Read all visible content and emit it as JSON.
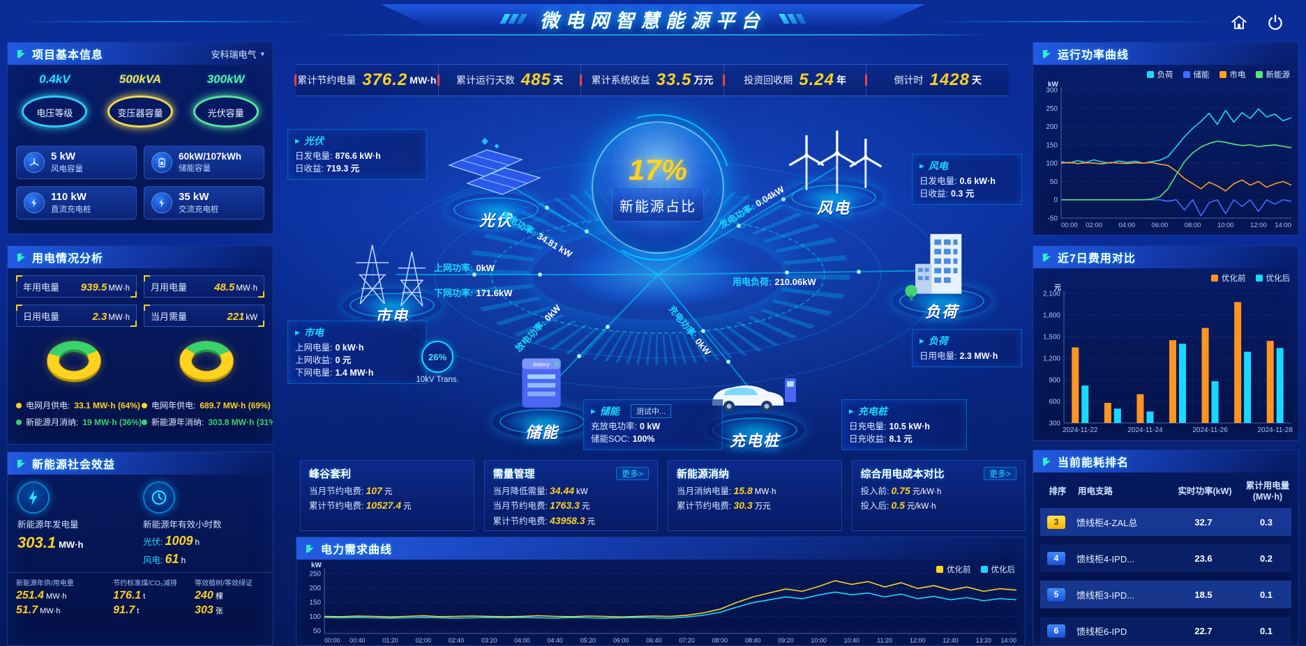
{
  "header": {
    "title": "微电网智慧能源平台"
  },
  "kpi_bar": {
    "items": [
      {
        "label": "累计节约电量",
        "value": "376.2",
        "unit": "MW·h"
      },
      {
        "label": "累计运行天数",
        "value": "485",
        "unit": "天"
      },
      {
        "label": "累计系统收益",
        "value": "33.5",
        "unit": "万元"
      },
      {
        "label": "投资回收期",
        "value": "5.24",
        "unit": "年"
      },
      {
        "label": "倒计时",
        "value": "1428",
        "unit": "天"
      }
    ]
  },
  "project": {
    "title": "项目基本信息",
    "company": "安科瑞电气",
    "gauges": [
      {
        "value": "0.4kV",
        "label": "电压等级",
        "color": "#35d6ff"
      },
      {
        "value": "500kVA",
        "label": "变压器容量",
        "color": "#ffe34d"
      },
      {
        "value": "300kW",
        "label": "光伏容量",
        "color": "#5df0a6"
      }
    ],
    "capacities": [
      {
        "value": "5 kW",
        "label": "风电容量"
      },
      {
        "value": "60kW/107kWh",
        "label": "储能容量"
      },
      {
        "value": "110 kW",
        "label": "直流充电桩"
      },
      {
        "value": "35 kW",
        "label": "交流充电桩"
      }
    ]
  },
  "usage": {
    "title": "用电情况分析",
    "stats": [
      {
        "label": "年用电量",
        "value": "939.5",
        "unit": "MW·h"
      },
      {
        "label": "月用电量",
        "value": "48.5",
        "unit": "MW·h"
      },
      {
        "label": "日用电量",
        "value": "2.3",
        "unit": "MW·h"
      },
      {
        "label": "当月需量",
        "value": "221",
        "unit": "kW"
      }
    ],
    "legend": [
      {
        "label": "电网月供电:",
        "value": "33.1 MW·h (64%)",
        "color": "#ffd21f"
      },
      {
        "label": "新能源月消纳:",
        "value": "19 MW·h (36%)",
        "color": "#3ad26b"
      },
      {
        "label": "电网年供电:",
        "value": "689.7 MW·h (69%)",
        "color": "#ffd21f"
      },
      {
        "label": "新能源年消纳:",
        "value": "303.8 MW·h (31%)",
        "color": "#3ad26b"
      }
    ]
  },
  "social": {
    "title": "新能源社会效益",
    "generation": {
      "label": "新能源年发电量",
      "value": "303.1",
      "unit": "MW·h"
    },
    "hours": {
      "label": "新能源年有效小时数",
      "pv_label": "光伏:",
      "pv_value": "1009",
      "pv_unit": "h",
      "wind_label": "风电:",
      "wind_value": "61",
      "wind_unit": "h"
    },
    "footer": [
      {
        "label": "新能源年供/用电量",
        "v1": "251.4",
        "u1": "MW·h",
        "v2": "51.7",
        "u2": "MW·h"
      },
      {
        "label": "节约标准煤/CO₂减排",
        "v1": "176.1",
        "u1": "t",
        "v2": "91.7",
        "u2": "t"
      },
      {
        "label": "等效植树/等效绿证",
        "v1": "240",
        "u1": "棵",
        "v2": "303",
        "u2": "张"
      }
    ]
  },
  "viz": {
    "hub": {
      "percent": "17%",
      "caption": "新能源占比"
    },
    "transformer": {
      "percent": "26%",
      "label": "10kV Trans."
    },
    "nodes": {
      "pv": {
        "name": "光伏"
      },
      "wind": {
        "name": "风电"
      },
      "grid": {
        "name": "市电"
      },
      "storage": {
        "name": "储能"
      },
      "load": {
        "name": "负荷"
      },
      "charger": {
        "name": "充电桩"
      }
    },
    "cards": {
      "pv": {
        "title": "光伏",
        "lines": [
          {
            "k": "日发电量:",
            "v": "876.6 kW·h"
          },
          {
            "k": "日收益:",
            "v": "719.3 元"
          }
        ]
      },
      "wind": {
        "title": "风电",
        "lines": [
          {
            "k": "日发电量:",
            "v": "0.6 kW·h"
          },
          {
            "k": "日收益:",
            "v": "0.3 元"
          }
        ]
      },
      "grid": {
        "title": "市电",
        "lines": [
          {
            "k": "上网电量:",
            "v": "0 kW·h"
          },
          {
            "k": "上网收益:",
            "v": "0 元"
          },
          {
            "k": "下网电量:",
            "v": "1.4 MW·h"
          }
        ]
      },
      "storage": {
        "title": "储能",
        "badge": "测试中...",
        "lines": [
          {
            "k": "充放电功率:",
            "v": "0 kW"
          },
          {
            "k": "储能SOC:",
            "v": "100%"
          }
        ]
      },
      "load": {
        "title": "负荷",
        "lines": [
          {
            "k": "日用电量:",
            "v": "2.3 MW·h"
          }
        ]
      },
      "charger": {
        "title": "充电桩",
        "lines": [
          {
            "k": "日充电量:",
            "v": "10.5 kW·h"
          },
          {
            "k": "日充收益:",
            "v": "8.1 元"
          }
        ]
      }
    },
    "flows": {
      "pv_gen": {
        "label": "发电功率:",
        "value": "34.81 kW"
      },
      "grid_up": {
        "label": "上网功率:",
        "value": "0kW"
      },
      "grid_down": {
        "label": "下网功率:",
        "value": "171.6kW"
      },
      "wind_gen": {
        "label": "发电功率:",
        "value": "0.04kW"
      },
      "load_power": {
        "label": "用电负荷:",
        "value": "210.06kW"
      },
      "charge": {
        "label": "充电功率:",
        "value": "0kW"
      },
      "discharge": {
        "label": "放电功率:",
        "value": "0kW"
      }
    }
  },
  "benefit_cards": [
    {
      "title": "峰谷套利",
      "lines": [
        {
          "k": "当月节约电费:",
          "v": "107",
          "u": "元"
        },
        {
          "k": "累计节约电费:",
          "v": "10527.4",
          "u": "元"
        }
      ]
    },
    {
      "title": "需量管理",
      "more": "更多>",
      "lines": [
        {
          "k": "当月降低需量:",
          "v": "34.44",
          "u": "kW"
        },
        {
          "k": "当月节约电费:",
          "v": "1763.3",
          "u": "元"
        },
        {
          "k": "累计节约电费:",
          "v": "43958.3",
          "u": "元"
        }
      ]
    },
    {
      "title": "新能源消纳",
      "lines": [
        {
          "k": "当月消纳电量:",
          "v": "15.8",
          "u": "MW·h"
        },
        {
          "k": "累计节约电费:",
          "v": "30.3",
          "u": "万元"
        }
      ]
    },
    {
      "title": "综合用电成本对比",
      "more": "更多>",
      "lines": [
        {
          "k": "投入前:",
          "v": "0.75",
          "u": "元/kW·h"
        },
        {
          "k": "投入后:",
          "v": "0.5",
          "u": "元/kW·h"
        }
      ]
    }
  ],
  "demand_panel": {
    "title": "电力需求曲线"
  },
  "right": {
    "power_curve": {
      "title": "运行功率曲线"
    },
    "cost_compare": {
      "title": "近7日费用对比"
    },
    "ranking": {
      "title": "当前能耗排名",
      "headers": [
        "排序",
        "用电支路",
        "实时功率(kW)",
        "累计用电量(MW·h)"
      ],
      "rows": [
        {
          "rank": "3",
          "name": "馈线柜4-ZAL总",
          "power": "32.7",
          "energy": "0.3"
        },
        {
          "rank": "4",
          "name": "馈线柜4-IPD...",
          "power": "23.6",
          "energy": "0.2"
        },
        {
          "rank": "5",
          "name": "馈线柜3-IPD...",
          "power": "18.5",
          "energy": "0.1"
        },
        {
          "rank": "6",
          "name": "馈线柜6-IPD",
          "power": "22.7",
          "energy": "0.1"
        }
      ]
    }
  },
  "chart_data": [
    {
      "id": "run-power",
      "type": "line",
      "title": "运行功率曲线",
      "ylabel": "kW",
      "ylim": [
        -50,
        300
      ],
      "yticks": [
        -50,
        0,
        50,
        100,
        150,
        200,
        250,
        300
      ],
      "xticks": [
        "00:00",
        "02:00",
        "04:00",
        "06:00",
        "08:00",
        "10:00",
        "12:00",
        "14:00"
      ],
      "ml": 36,
      "grid": true,
      "legend_position": "top-right",
      "series": [
        {
          "name": "负荷",
          "color": "#18dcff",
          "values": [
            104,
            100,
            107,
            102,
            109,
            103,
            100,
            106,
            102,
            105,
            100,
            104,
            108,
            118,
            145,
            172,
            195,
            214,
            236,
            206,
            244,
            212,
            238,
            222,
            248,
            226,
            234,
            216,
            224
          ]
        },
        {
          "name": "储能",
          "color": "#3f6dff",
          "values": [
            0,
            0,
            0,
            0,
            0,
            0,
            0,
            0,
            0,
            0,
            0,
            0,
            0,
            -4,
            0,
            -28,
            0,
            -44,
            -8,
            0,
            -38,
            0,
            -18,
            0,
            -32,
            0,
            -12,
            0,
            -4
          ]
        },
        {
          "name": "市电",
          "color": "#ffa21a",
          "values": [
            100,
            102,
            99,
            101,
            100,
            98,
            102,
            100,
            99,
            101,
            100,
            102,
            97,
            94,
            78,
            58,
            44,
            30,
            48,
            38,
            24,
            44,
            54,
            40,
            50,
            34,
            44,
            50,
            40
          ]
        },
        {
          "name": "新能源",
          "color": "#57e87b",
          "values": [
            0,
            0,
            0,
            0,
            0,
            0,
            0,
            0,
            0,
            0,
            0,
            2,
            8,
            30,
            68,
            104,
            128,
            144,
            154,
            160,
            157,
            152,
            148,
            150,
            145,
            148,
            150,
            146,
            142
          ]
        }
      ]
    },
    {
      "id": "cost-compare",
      "type": "bar",
      "title": "近7日费用对比",
      "ylabel": "元",
      "ylim": [
        300,
        2100
      ],
      "yticks": [
        300,
        600,
        900,
        1200,
        1500,
        1800,
        2100
      ],
      "categories": [
        "2024-11-22",
        "2024-11-23",
        "2024-11-24",
        "2024-11-25",
        "2024-11-26",
        "2024-11-27",
        "2024-11-28"
      ],
      "xticks": [
        "2024-11-22",
        "2024-11-24",
        "2024-11-26",
        "2024-11-28"
      ],
      "xtick_idx": [
        0,
        2,
        4,
        6
      ],
      "ml": 40,
      "legend_position": "top-right",
      "series": [
        {
          "name": "优化前",
          "color": "#ff9420",
          "values": [
            1350,
            580,
            700,
            1450,
            1620,
            1980,
            1440
          ]
        },
        {
          "name": "优化后",
          "color": "#19d8ff",
          "values": [
            820,
            500,
            460,
            1400,
            880,
            1290,
            1340
          ]
        }
      ]
    },
    {
      "id": "demand-curve",
      "type": "line",
      "title": "电力需求曲线",
      "ylabel": "kW",
      "ylim": [
        40,
        260
      ],
      "yticks": [
        50,
        100,
        150,
        200,
        250
      ],
      "xticks": [
        "00:00",
        "00:40",
        "01:20",
        "02:00",
        "02:40",
        "03:20",
        "04:00",
        "04:40",
        "05:20",
        "06:00",
        "06:40",
        "07:20",
        "08:00",
        "08:40",
        "09:20",
        "10:00",
        "10:40",
        "11:20",
        "12:00",
        "12:40",
        "13:20",
        "14:00"
      ],
      "ml": 34,
      "xfont": 9,
      "legend_position": "top-right",
      "series": [
        {
          "name": "优化前",
          "color": "#ffd21f",
          "values": [
            100,
            99,
            101,
            100,
            98,
            100,
            102,
            99,
            100,
            101,
            100,
            99,
            100,
            102,
            100,
            99,
            101,
            100,
            98,
            100,
            101,
            100,
            104,
            112,
            125,
            148,
            168,
            182,
            196,
            188,
            205,
            225,
            212,
            222,
            203,
            218,
            198,
            208,
            192,
            203,
            188,
            197,
            192
          ]
        },
        {
          "name": "优化后",
          "color": "#19d8ff",
          "values": [
            96,
            95,
            96,
            95,
            94,
            95,
            96,
            95,
            94,
            95,
            96,
            95,
            96,
            95,
            94,
            96,
            95,
            94,
            95,
            96,
            95,
            94,
            98,
            104,
            114,
            132,
            148,
            158,
            168,
            162,
            175,
            185,
            176,
            182,
            168,
            178,
            162,
            170,
            158,
            166,
            155,
            162,
            158
          ]
        }
      ]
    },
    {
      "id": "donut-month",
      "type": "pie",
      "values": [
        64,
        36
      ],
      "labels": [
        "电网月供电",
        "新能源月消纳"
      ],
      "amounts": [
        "33.1 MW·h",
        "19 MW·h"
      ],
      "colors": [
        "#ffd21f",
        "#3ad26b"
      ],
      "colors_dark": [
        "#b99500",
        "#1f9646"
      ]
    },
    {
      "id": "donut-year",
      "type": "pie",
      "values": [
        69,
        31
      ],
      "labels": [
        "电网年供电",
        "新能源年消纳"
      ],
      "amounts": [
        "689.7 MW·h",
        "303.8 MW·h"
      ],
      "colors": [
        "#ffd21f",
        "#3ad26b"
      ],
      "colors_dark": [
        "#b99500",
        "#1f9646"
      ]
    }
  ]
}
